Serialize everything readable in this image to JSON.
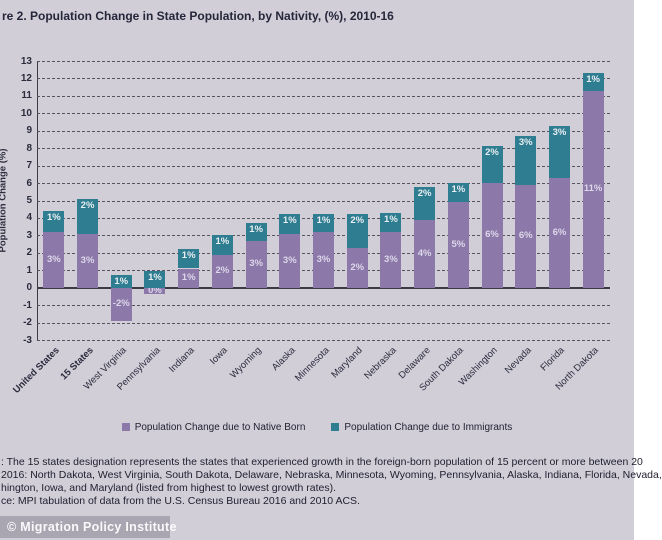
{
  "page": {
    "title": "re 2. Population Change in State Population, by Nativity, (%), 2010-16",
    "watermark": "© Migration Policy Institute",
    "background_color": "#d1ced8"
  },
  "chart_data": {
    "type": "bar",
    "stacked": true,
    "title": "re 2. Population Change in State Population, by Nativity, (%), 2010-16",
    "ylabel": "Population Change (%)",
    "ylim": [
      -3,
      13
    ],
    "ytick_step": 1,
    "grid": "horizontal-dashed",
    "legend_position": "bottom",
    "colors": {
      "native": "#8c79a9",
      "immigrant": "#2f7d90"
    },
    "categories": [
      "United States",
      "15 States",
      "West Virginia",
      "Pennsylvania",
      "Indiana",
      "Iowa",
      "Wyoming",
      "Alaska",
      "Minnesota",
      "Maryland",
      "Nebraska",
      "Delaware",
      "South Dakota",
      "Washington",
      "Nevada",
      "Florida",
      "North Dakota"
    ],
    "bold_categories": [
      "United States",
      "15 States"
    ],
    "series": [
      {
        "name": "Population Change due to Native Born",
        "color_key": "native",
        "values": [
          3.2,
          3.1,
          -1.9,
          -0.35,
          1.1,
          1.9,
          2.7,
          3.1,
          3.2,
          2.3,
          3.2,
          3.9,
          4.9,
          6.0,
          5.9,
          6.3,
          11.3
        ],
        "labels": [
          "3%",
          "3%",
          "-2%",
          "0%",
          "1%",
          "2%",
          "3%",
          "3%",
          "3%",
          "2%",
          "3%",
          "4%",
          "5%",
          "6%",
          "6%",
          "6%",
          "11%"
        ]
      },
      {
        "name": "Population Change due to Immigrants",
        "color_key": "immigrant",
        "values": [
          1.2,
          2.0,
          0.7,
          0.95,
          1.1,
          1.1,
          1.0,
          1.1,
          1.0,
          1.9,
          1.1,
          1.9,
          1.1,
          2.1,
          2.8,
          3.0,
          1.0
        ],
        "labels": [
          "1%",
          "2%",
          "1%",
          "1%",
          "1%",
          "1%",
          "1%",
          "1%",
          "1%",
          "2%",
          "1%",
          "2%",
          "1%",
          "2%",
          "3%",
          "3%",
          "1%"
        ]
      }
    ]
  },
  "notes": {
    "line1": ": The 15 states designation represents the states that experienced growth in the foreign-born population of 15 percent or more between 20",
    "line2": "2016: North Dakota, West Virginia, South Dakota, Delaware, Nebraska, Minnesota, Wyoming, Pennsylvania, Alaska, Indiana, Florida, Nevada,",
    "line3": "hington, Iowa, and Maryland (listed from highest to lowest growth rates).",
    "line4": "ce: MPI tabulation of data from the U.S. Census Bureau 2016 and 2010 ACS."
  }
}
